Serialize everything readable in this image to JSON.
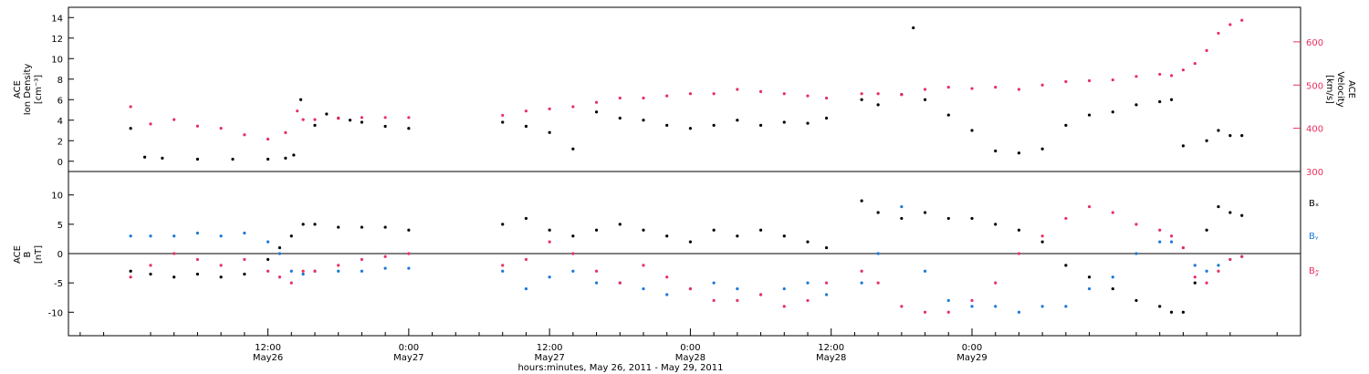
{
  "chart_data": [
    {
      "type": "scatter",
      "panel": "top",
      "title": "",
      "ylabel_left": [
        "ACE",
        "Ion Density",
        "[cm⁻³]"
      ],
      "ylabel_right": [
        "ACE",
        "Velocity",
        "[km/s]"
      ],
      "ylim_left": [
        -1,
        15
      ],
      "ylim_right": [
        300,
        680
      ],
      "yticks_left": [
        "0",
        "2",
        "4",
        "6",
        "8",
        "10",
        "12",
        "14"
      ],
      "yticks_right": [
        "300",
        "400",
        "500",
        "600"
      ],
      "colors": {
        "density": "#000000",
        "velocity": "#e8305f"
      },
      "series": [
        {
          "name": "Ion Density",
          "axis": "left",
          "color": "#000000",
          "points": [
            [
              0.3,
              3.2
            ],
            [
              1.5,
              0.4
            ],
            [
              3,
              0.3
            ],
            [
              6,
              0.2
            ],
            [
              9,
              0.2
            ],
            [
              12,
              0.2
            ],
            [
              13.5,
              0.3
            ],
            [
              14.2,
              0.6
            ],
            [
              14.8,
              6
            ],
            [
              16,
              3.5
            ],
            [
              17,
              4.6
            ],
            [
              18,
              4.2
            ],
            [
              19,
              4
            ],
            [
              20,
              3.8
            ],
            [
              22,
              3.4
            ],
            [
              24,
              3.2
            ],
            [
              32,
              3.8
            ],
            [
              34,
              3.4
            ],
            [
              36,
              2.8
            ],
            [
              38,
              1.2
            ],
            [
              40,
              4.8
            ],
            [
              42,
              4.2
            ],
            [
              44,
              4
            ],
            [
              46,
              3.5
            ],
            [
              48,
              3.2
            ],
            [
              50,
              3.5
            ],
            [
              52,
              4
            ],
            [
              54,
              3.5
            ],
            [
              56,
              3.8
            ],
            [
              58,
              3.7
            ],
            [
              59.6,
              4.2
            ],
            [
              62.6,
              6
            ],
            [
              64,
              5.5
            ],
            [
              66,
              6.5
            ],
            [
              67,
              13
            ],
            [
              68,
              6
            ],
            [
              70,
              4.5
            ],
            [
              72,
              3
            ],
            [
              74,
              1
            ],
            [
              76,
              0.8
            ],
            [
              78,
              1.2
            ],
            [
              80,
              3.5
            ],
            [
              82,
              4.5
            ],
            [
              84,
              4.8
            ],
            [
              86,
              5.5
            ],
            [
              88,
              5.8
            ],
            [
              89,
              6
            ],
            [
              90,
              1.5
            ],
            [
              92,
              2
            ],
            [
              93,
              3
            ],
            [
              94,
              2.5
            ],
            [
              95,
              2.5
            ]
          ]
        },
        {
          "name": "Velocity",
          "axis": "right",
          "color": "#e8305f",
          "points": [
            [
              0.3,
              450
            ],
            [
              2,
              410
            ],
            [
              4,
              420
            ],
            [
              6,
              405
            ],
            [
              8,
              400
            ],
            [
              10,
              385
            ],
            [
              12,
              375
            ],
            [
              13.5,
              390
            ],
            [
              14.5,
              440
            ],
            [
              15,
              420
            ],
            [
              16,
              420
            ],
            [
              18,
              423
            ],
            [
              20,
              425
            ],
            [
              22,
              425
            ],
            [
              24,
              425
            ],
            [
              32,
              430
            ],
            [
              34,
              440
            ],
            [
              36,
              445
            ],
            [
              38,
              450
            ],
            [
              40,
              460
            ],
            [
              42,
              470
            ],
            [
              44,
              470
            ],
            [
              46,
              475
            ],
            [
              48,
              480
            ],
            [
              50,
              480
            ],
            [
              52,
              490
            ],
            [
              54,
              485
            ],
            [
              56,
              480
            ],
            [
              58,
              475
            ],
            [
              59.6,
              470
            ],
            [
              62.6,
              480
            ],
            [
              64,
              480
            ],
            [
              66,
              478
            ],
            [
              68,
              490
            ],
            [
              70,
              495
            ],
            [
              72,
              492
            ],
            [
              74,
              495
            ],
            [
              76,
              490
            ],
            [
              78,
              500
            ],
            [
              80,
              508
            ],
            [
              82,
              510
            ],
            [
              84,
              512
            ],
            [
              86,
              520
            ],
            [
              88,
              525
            ],
            [
              89,
              522
            ],
            [
              90,
              535
            ],
            [
              91,
              550
            ],
            [
              92,
              580
            ],
            [
              93,
              620
            ],
            [
              94,
              640
            ],
            [
              95,
              650
            ]
          ]
        }
      ]
    },
    {
      "type": "scatter",
      "panel": "bottom",
      "title": "",
      "ylabel_left": [
        "ACE",
        "B",
        "[nT]"
      ],
      "ylim": [
        -14,
        14
      ],
      "yticks": [
        "-10",
        "-5",
        "0",
        "5",
        "10"
      ],
      "legend": [
        "Bₓ",
        "Bᵧ",
        "B𝓏"
      ],
      "legend_placement": "right",
      "xlabel": "hours:minutes, May 26, 2011 - May 29, 2011",
      "xticks": [
        {
          "hours": 12,
          "time": "12:00",
          "date": "May26"
        },
        {
          "hours": 24,
          "time": "0:00",
          "date": "May27"
        },
        {
          "hours": 36,
          "time": "12:00",
          "date": "May27"
        },
        {
          "hours": 48,
          "time": "0:00",
          "date": "May28"
        },
        {
          "hours": 60,
          "time": "12:00",
          "date": "May28"
        },
        {
          "hours": 72,
          "time": "0:00",
          "date": "May29"
        }
      ],
      "xlim": [
        -5,
        100
      ],
      "series": [
        {
          "name": "Bₓ",
          "color": "#000000",
          "points": [
            [
              0.3,
              -3
            ],
            [
              2,
              -3.5
            ],
            [
              4,
              -4
            ],
            [
              6,
              -3.5
            ],
            [
              8,
              -4
            ],
            [
              10,
              -3.5
            ],
            [
              12,
              -1
            ],
            [
              13,
              1
            ],
            [
              14,
              3
            ],
            [
              15,
              5
            ],
            [
              16,
              5
            ],
            [
              18,
              4.5
            ],
            [
              20,
              4.5
            ],
            [
              22,
              4.5
            ],
            [
              24,
              4
            ],
            [
              32,
              5
            ],
            [
              34,
              6
            ],
            [
              36,
              4
            ],
            [
              38,
              3
            ],
            [
              40,
              4
            ],
            [
              42,
              5
            ],
            [
              44,
              4
            ],
            [
              46,
              3
            ],
            [
              48,
              2
            ],
            [
              50,
              4
            ],
            [
              52,
              3
            ],
            [
              54,
              4
            ],
            [
              56,
              3
            ],
            [
              58,
              2
            ],
            [
              59.6,
              1
            ],
            [
              62.6,
              9
            ],
            [
              64,
              7
            ],
            [
              66,
              6
            ],
            [
              68,
              7
            ],
            [
              70,
              6
            ],
            [
              72,
              6
            ],
            [
              74,
              5
            ],
            [
              76,
              4
            ],
            [
              78,
              2
            ],
            [
              80,
              -2
            ],
            [
              82,
              -4
            ],
            [
              84,
              -6
            ],
            [
              86,
              -8
            ],
            [
              88,
              -9
            ],
            [
              89,
              -10
            ],
            [
              90,
              -10
            ],
            [
              91,
              -5
            ],
            [
              92,
              4
            ],
            [
              93,
              8
            ],
            [
              94,
              7
            ],
            [
              95,
              6.5
            ]
          ]
        },
        {
          "name": "Bᵧ",
          "color": "#1a78d8",
          "points": [
            [
              0.3,
              3
            ],
            [
              2,
              3
            ],
            [
              4,
              3
            ],
            [
              6,
              3.5
            ],
            [
              8,
              3
            ],
            [
              10,
              3.5
            ],
            [
              12,
              2
            ],
            [
              13,
              0
            ],
            [
              14,
              -3
            ],
            [
              15,
              -3.5
            ],
            [
              16,
              -3
            ],
            [
              18,
              -3
            ],
            [
              20,
              -3
            ],
            [
              22,
              -2.5
            ],
            [
              24,
              -2.5
            ],
            [
              32,
              -3
            ],
            [
              34,
              -6
            ],
            [
              36,
              -4
            ],
            [
              38,
              -3
            ],
            [
              40,
              -5
            ],
            [
              42,
              -5
            ],
            [
              44,
              -6
            ],
            [
              46,
              -7
            ],
            [
              48,
              -6
            ],
            [
              50,
              -5
            ],
            [
              52,
              -6
            ],
            [
              54,
              -7
            ],
            [
              56,
              -6
            ],
            [
              58,
              -5
            ],
            [
              59.6,
              -7
            ],
            [
              62.6,
              -5
            ],
            [
              64,
              0
            ],
            [
              66,
              8
            ],
            [
              68,
              -3
            ],
            [
              70,
              -8
            ],
            [
              72,
              -9
            ],
            [
              74,
              -9
            ],
            [
              76,
              -10
            ],
            [
              78,
              -9
            ],
            [
              80,
              -9
            ],
            [
              82,
              -6
            ],
            [
              84,
              -4
            ],
            [
              86,
              0
            ],
            [
              88,
              2
            ],
            [
              89,
              2
            ],
            [
              90,
              1
            ],
            [
              91,
              -2
            ],
            [
              92,
              -3
            ],
            [
              93,
              -2
            ],
            [
              94,
              -1
            ],
            [
              95,
              -0.5
            ]
          ]
        },
        {
          "name": "B𝓏",
          "color": "#e8305f",
          "points": [
            [
              0.3,
              -4
            ],
            [
              2,
              -2
            ],
            [
              4,
              0
            ],
            [
              6,
              -1
            ],
            [
              8,
              -2
            ],
            [
              10,
              -1
            ],
            [
              12,
              -3
            ],
            [
              13,
              -4
            ],
            [
              14,
              -5
            ],
            [
              15,
              -3
            ],
            [
              16,
              -3
            ],
            [
              18,
              -2
            ],
            [
              20,
              -1
            ],
            [
              22,
              -0.5
            ],
            [
              24,
              0
            ],
            [
              32,
              -2
            ],
            [
              34,
              -1
            ],
            [
              36,
              2
            ],
            [
              38,
              0
            ],
            [
              40,
              -3
            ],
            [
              42,
              -5
            ],
            [
              44,
              -2
            ],
            [
              46,
              -4
            ],
            [
              48,
              -6
            ],
            [
              50,
              -8
            ],
            [
              52,
              -8
            ],
            [
              54,
              -7
            ],
            [
              56,
              -9
            ],
            [
              58,
              -8
            ],
            [
              59.6,
              -5
            ],
            [
              62.6,
              -3
            ],
            [
              64,
              -5
            ],
            [
              66,
              -9
            ],
            [
              68,
              -10
            ],
            [
              70,
              -10
            ],
            [
              72,
              -8
            ],
            [
              74,
              -5
            ],
            [
              76,
              0
            ],
            [
              78,
              3
            ],
            [
              80,
              6
            ],
            [
              82,
              8
            ],
            [
              84,
              7
            ],
            [
              86,
              5
            ],
            [
              88,
              4
            ],
            [
              89,
              3
            ],
            [
              90,
              1
            ],
            [
              91,
              -4
            ],
            [
              92,
              -5
            ],
            [
              93,
              -3
            ],
            [
              94,
              -1
            ],
            [
              95,
              -0.5
            ]
          ]
        }
      ]
    }
  ]
}
